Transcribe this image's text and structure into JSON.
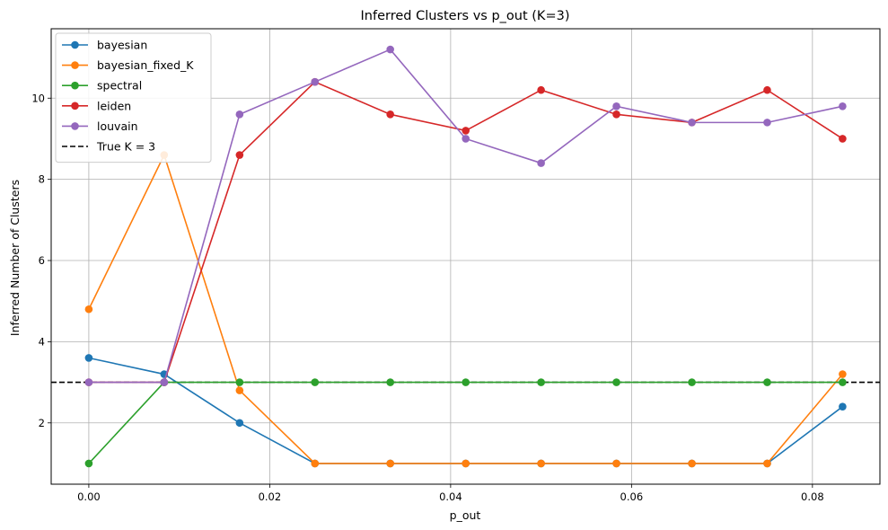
{
  "chart_data": {
    "type": "line",
    "title": "Inferred Clusters vs p_out (K=3)",
    "xlabel": "p_out",
    "ylabel": "Inferred Number of Clusters",
    "xlim": [
      -0.00416,
      0.08746
    ],
    "ylim": [
      0.49,
      11.71
    ],
    "grid": true,
    "legend_position": "top-left",
    "x": [
      0.0,
      0.00833,
      0.01667,
      0.025,
      0.03333,
      0.04167,
      0.05,
      0.05833,
      0.06667,
      0.075,
      0.08333
    ],
    "xticks": [
      0.0,
      0.02,
      0.04,
      0.06,
      0.08
    ],
    "xtick_labels": [
      "0.00",
      "0.02",
      "0.04",
      "0.06",
      "0.08"
    ],
    "yticks": [
      2,
      4,
      6,
      8,
      10
    ],
    "ytick_labels": [
      "2",
      "4",
      "6",
      "8",
      "10"
    ],
    "series": [
      {
        "name": "bayesian",
        "color": "#1f77b4",
        "values": [
          3.6,
          3.2,
          2.0,
          1.0,
          1.0,
          1.0,
          1.0,
          1.0,
          1.0,
          1.0,
          2.4
        ]
      },
      {
        "name": "bayesian_fixed_K",
        "color": "#ff7f0e",
        "values": [
          4.8,
          8.6,
          2.8,
          1.0,
          1.0,
          1.0,
          1.0,
          1.0,
          1.0,
          1.0,
          3.2
        ]
      },
      {
        "name": "spectral",
        "color": "#2ca02c",
        "values": [
          1.0,
          3.0,
          3.0,
          3.0,
          3.0,
          3.0,
          3.0,
          3.0,
          3.0,
          3.0,
          3.0
        ]
      },
      {
        "name": "leiden",
        "color": "#d62728",
        "values": [
          3.0,
          3.0,
          8.6,
          10.4,
          9.6,
          9.2,
          10.2,
          9.6,
          9.4,
          10.2,
          9.0
        ]
      },
      {
        "name": "louvain",
        "color": "#9467bd",
        "values": [
          3.0,
          3.0,
          9.6,
          10.4,
          11.2,
          9.0,
          8.4,
          9.8,
          9.4,
          9.4,
          9.8
        ]
      }
    ],
    "reference_line": {
      "name": "True K = 3",
      "y": 3,
      "color": "#000000",
      "style": "dashed"
    }
  }
}
